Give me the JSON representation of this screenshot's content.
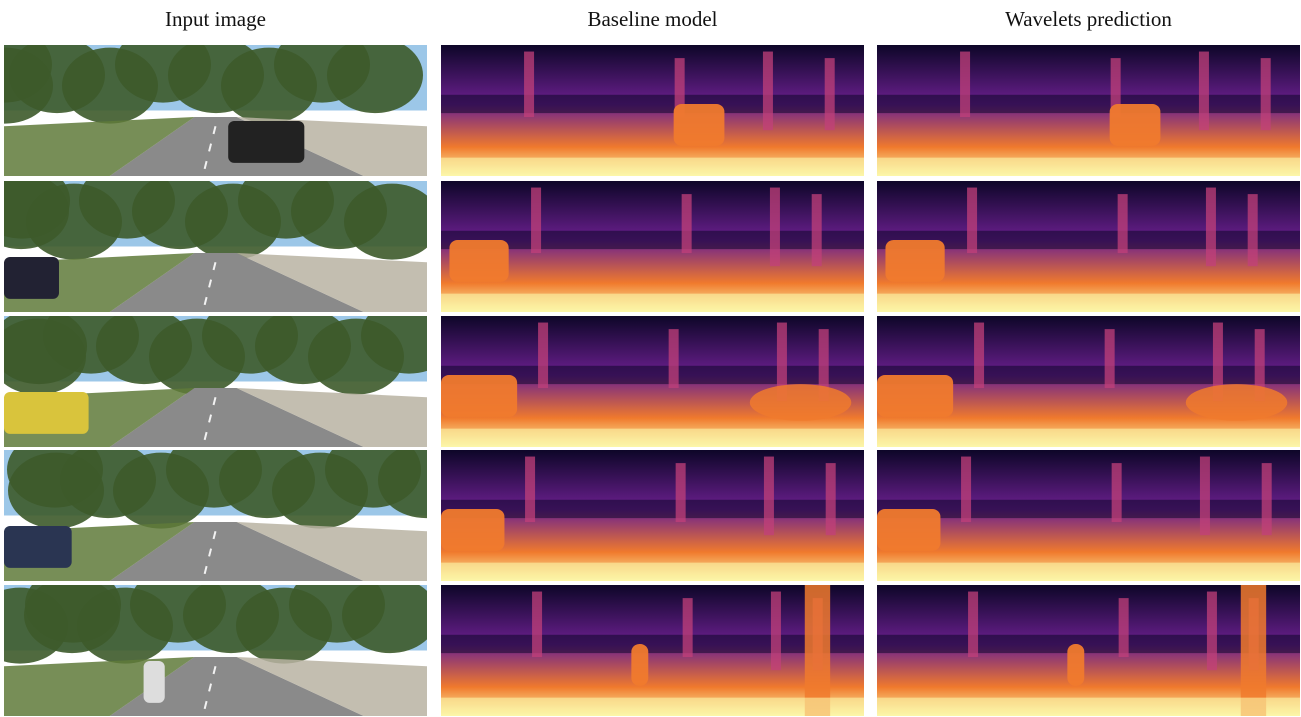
{
  "figure": {
    "columns": [
      {
        "title": "Input image",
        "kind": "rgb-street-scene"
      },
      {
        "title": "Baseline model",
        "kind": "depth-map-inferno"
      },
      {
        "title": "Wavelets prediction",
        "kind": "depth-map-inferno"
      }
    ],
    "rows": [
      {
        "scene": "street-cars-overpass"
      },
      {
        "scene": "shaded-street-parked-cars"
      },
      {
        "scene": "residential-street-yellow-van"
      },
      {
        "scene": "road-motorcycle-trees"
      },
      {
        "scene": "tree-lined-road-buildings"
      }
    ],
    "palette": {
      "depth_far": "#0d0628",
      "depth_mid": "#6a1f8e",
      "depth_near": "#f07a2d",
      "depth_closest": "#fcf7a8",
      "sky": "#9cc7e8",
      "foliage": "#3d5a2a",
      "road": "#8a8a8a",
      "grass": "#5f7a3a"
    }
  }
}
